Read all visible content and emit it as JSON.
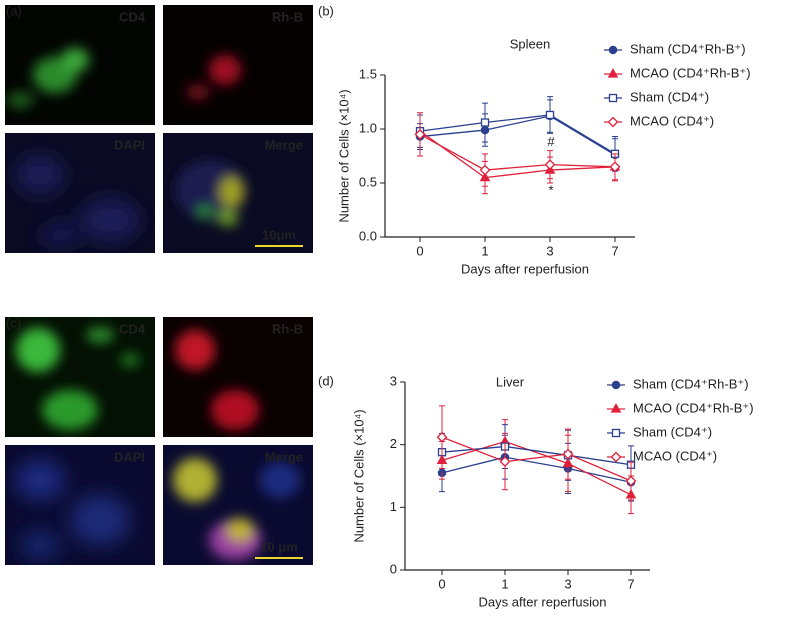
{
  "panel_labels": [
    "(a)",
    "(b)",
    "(c)",
    "(d)"
  ],
  "image_panels": [
    {
      "labels": [
        "CD4",
        "Rh-B",
        "DAPI",
        "Merge"
      ],
      "colors": [
        "#3fbf3f",
        "#e0202a",
        "#2f6fd0",
        "#e8d82a"
      ],
      "scale_bar": "10μm"
    },
    {
      "labels": [
        "CD4",
        "Rh-B",
        "DAPI",
        "Merge"
      ],
      "colors": [
        "#3fbf3f",
        "#e0202a",
        "#2f6fd0",
        "#e8d82a"
      ],
      "scale_bar": "10 μm"
    }
  ],
  "chart_data": [
    {
      "type": "line",
      "title": "Spleen",
      "x_label": "Days after reperfusion",
      "y_label": "Number of Cells (×10⁴)",
      "categories": [
        "0",
        "1",
        "3",
        "7"
      ],
      "ylim": [
        0,
        1.5
      ],
      "yticks": [
        {
          "value": 0,
          "label": "0.0"
        },
        {
          "value": 0.5,
          "label": "0.5"
        },
        {
          "value": 1,
          "label": "1.0"
        },
        {
          "value": 1.5,
          "label": "1.5"
        }
      ],
      "legend": "right",
      "annotations": [
        "#",
        "*"
      ],
      "series": [
        {
          "name": "Sham (CD4⁺Rh-B⁺)",
          "color": "#2a3f8f",
          "marker": "circle",
          "filled": true,
          "values": [
            0.93,
            0.99,
            1.12,
            0.76
          ],
          "errors": [
            0.12,
            0.15,
            0.15,
            0.15
          ]
        },
        {
          "name": "MCAO (CD4⁺Rh-B⁺)",
          "color": "#e0203a",
          "marker": "triangle",
          "filled": true,
          "values": [
            0.98,
            0.55,
            0.62,
            0.65
          ],
          "errors": [
            0.15,
            0.15,
            0.12,
            0.13
          ]
        },
        {
          "name": "Sham (CD4⁺)",
          "color": "#2a3f8f",
          "marker": "square",
          "filled": false,
          "values": [
            0.98,
            1.06,
            1.13,
            0.77
          ],
          "errors": [
            0.15,
            0.18,
            0.17,
            0.16
          ]
        },
        {
          "name": "MCAO (CD4⁺)",
          "color": "#e0203a",
          "marker": "diamond",
          "filled": false,
          "values": [
            0.95,
            0.62,
            0.67,
            0.65
          ],
          "errors": [
            0.2,
            0.15,
            0.13,
            0.12
          ]
        }
      ]
    },
    {
      "type": "line",
      "title": "Liver",
      "x_label": "Days after reperfusion",
      "y_label": "Number of Cells (×10⁴)",
      "categories": [
        "0",
        "1",
        "3",
        "7"
      ],
      "ylim": [
        0,
        3
      ],
      "yticks": [
        0,
        1,
        2,
        3
      ],
      "legend": "right",
      "series": [
        {
          "name": "Sham (CD4⁺Rh-B⁺)",
          "color": "#2a3f8f",
          "marker": "circle",
          "filled": true,
          "values": [
            1.55,
            1.8,
            1.62,
            1.4
          ],
          "errors": [
            0.3,
            0.35,
            0.4,
            0.3
          ]
        },
        {
          "name": "MCAO (CD4⁺Rh-B⁺)",
          "color": "#e0203a",
          "marker": "triangle",
          "filled": true,
          "values": [
            1.75,
            2.05,
            1.7,
            1.2
          ],
          "errors": [
            0.3,
            0.35,
            0.45,
            0.3
          ]
        },
        {
          "name": "Sham (CD4⁺)",
          "color": "#2a3f8f",
          "marker": "square",
          "filled": false,
          "values": [
            1.88,
            1.97,
            1.83,
            1.68
          ],
          "errors": [
            0.3,
            0.35,
            0.4,
            0.3
          ]
        },
        {
          "name": "MCAO (CD4⁺)",
          "color": "#e0203a",
          "marker": "diamond",
          "filled": false,
          "values": [
            2.12,
            1.73,
            1.85,
            1.42
          ],
          "errors": [
            0.5,
            0.45,
            0.4,
            0.3
          ]
        }
      ]
    }
  ]
}
